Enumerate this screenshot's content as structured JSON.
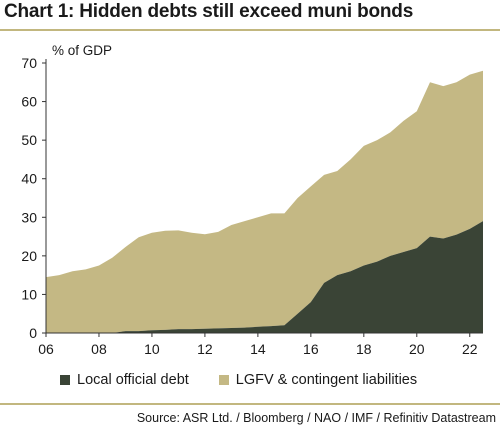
{
  "title": "Chart 1: Hidden debts still exceed muni bonds",
  "source": "Source: ASR Ltd. / Bloomberg / NAO / IMF / Refinitiv Datastream",
  "colors": {
    "local": "#3a4436",
    "lgfv": "#c4b884",
    "rule": "#c2b77f",
    "axis": "#333333"
  },
  "chart_data": {
    "type": "area",
    "stacked": true,
    "ylabel": "% of GDP",
    "xlabel": "",
    "ylim": [
      0,
      70
    ],
    "xlim": [
      2006.0,
      2022.5
    ],
    "yticks": [
      "0",
      "10",
      "20",
      "30",
      "40",
      "50",
      "60",
      "70"
    ],
    "xticks": [
      "06",
      "08",
      "10",
      "12",
      "14",
      "16",
      "18",
      "20",
      "22"
    ],
    "grid": false,
    "legend_position": "bottom",
    "x": [
      2006.0,
      2006.5,
      2007.0,
      2007.5,
      2008.0,
      2008.5,
      2009.0,
      2009.5,
      2010.0,
      2010.5,
      2011.0,
      2011.5,
      2012.0,
      2012.5,
      2013.0,
      2013.5,
      2014.0,
      2014.5,
      2015.0,
      2015.5,
      2016.0,
      2016.5,
      2017.0,
      2017.5,
      2018.0,
      2018.5,
      2019.0,
      2019.5,
      2020.0,
      2020.5,
      2021.0,
      2021.5,
      2022.0,
      2022.5
    ],
    "series": [
      {
        "name": "Local official debt",
        "values": [
          0,
          0,
          0,
          0,
          0,
          0,
          0.5,
          0.5,
          0.7,
          0.8,
          1.0,
          1.0,
          1.1,
          1.2,
          1.3,
          1.4,
          1.6,
          1.8,
          2.0,
          5.0,
          8.0,
          13.0,
          15.0,
          16.0,
          17.5,
          18.5,
          20.0,
          21.0,
          22.0,
          25.0,
          24.5,
          25.5,
          27.0,
          29.0
        ]
      },
      {
        "name": "LGFV & contingent liabilities",
        "values": [
          14.5,
          15.0,
          16.0,
          16.5,
          17.5,
          19.5,
          21.8,
          24.3,
          25.3,
          25.7,
          25.6,
          25.0,
          24.5,
          25.0,
          26.7,
          27.6,
          28.4,
          29.2,
          29.0,
          30.0,
          30.0,
          28.0,
          27.0,
          29.0,
          31.0,
          31.5,
          32.0,
          34.0,
          35.5,
          40.0,
          39.5,
          39.5,
          40.0,
          39.0
        ]
      }
    ]
  }
}
